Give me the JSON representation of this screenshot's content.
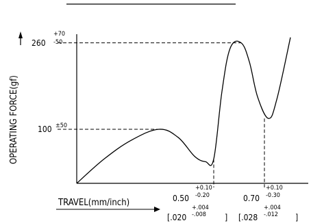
{
  "chart_data": {
    "type": "line",
    "title": "",
    "ylabel": "OPERATING FORCE(gf)",
    "xlabel": "TRAVEL(mm/inch)",
    "grid": false,
    "y_ticks": [
      {
        "base": "100",
        "tol": "±50"
      },
      {
        "base": "260",
        "upper": "+70",
        "lower": "-50"
      }
    ],
    "x_ticks": [
      {
        "base": "0.50",
        "upper": "+0.10",
        "lower": "-0.20",
        "inch": "[.020",
        "inch_upper": "+.004",
        "inch_lower": "-.008",
        "close": "]"
      },
      {
        "base": "0.70",
        "upper": "+0.10",
        "lower": "-0.30",
        "inch": "[.028",
        "inch_upper": "+.004",
        "inch_lower": "-.012",
        "close": "]"
      }
    ],
    "series": [
      {
        "x": [
          0,
          0.1,
          0.2,
          0.3,
          0.37,
          0.43,
          0.47,
          0.5,
          0.53,
          0.56,
          0.6,
          0.63,
          0.66,
          0.7,
          0.73,
          0.78
        ],
        "y": [
          0,
          45,
          80,
          100,
          85,
          50,
          40,
          45,
          170,
          250,
          260,
          225,
          160,
          120,
          155,
          270
        ]
      }
    ]
  }
}
